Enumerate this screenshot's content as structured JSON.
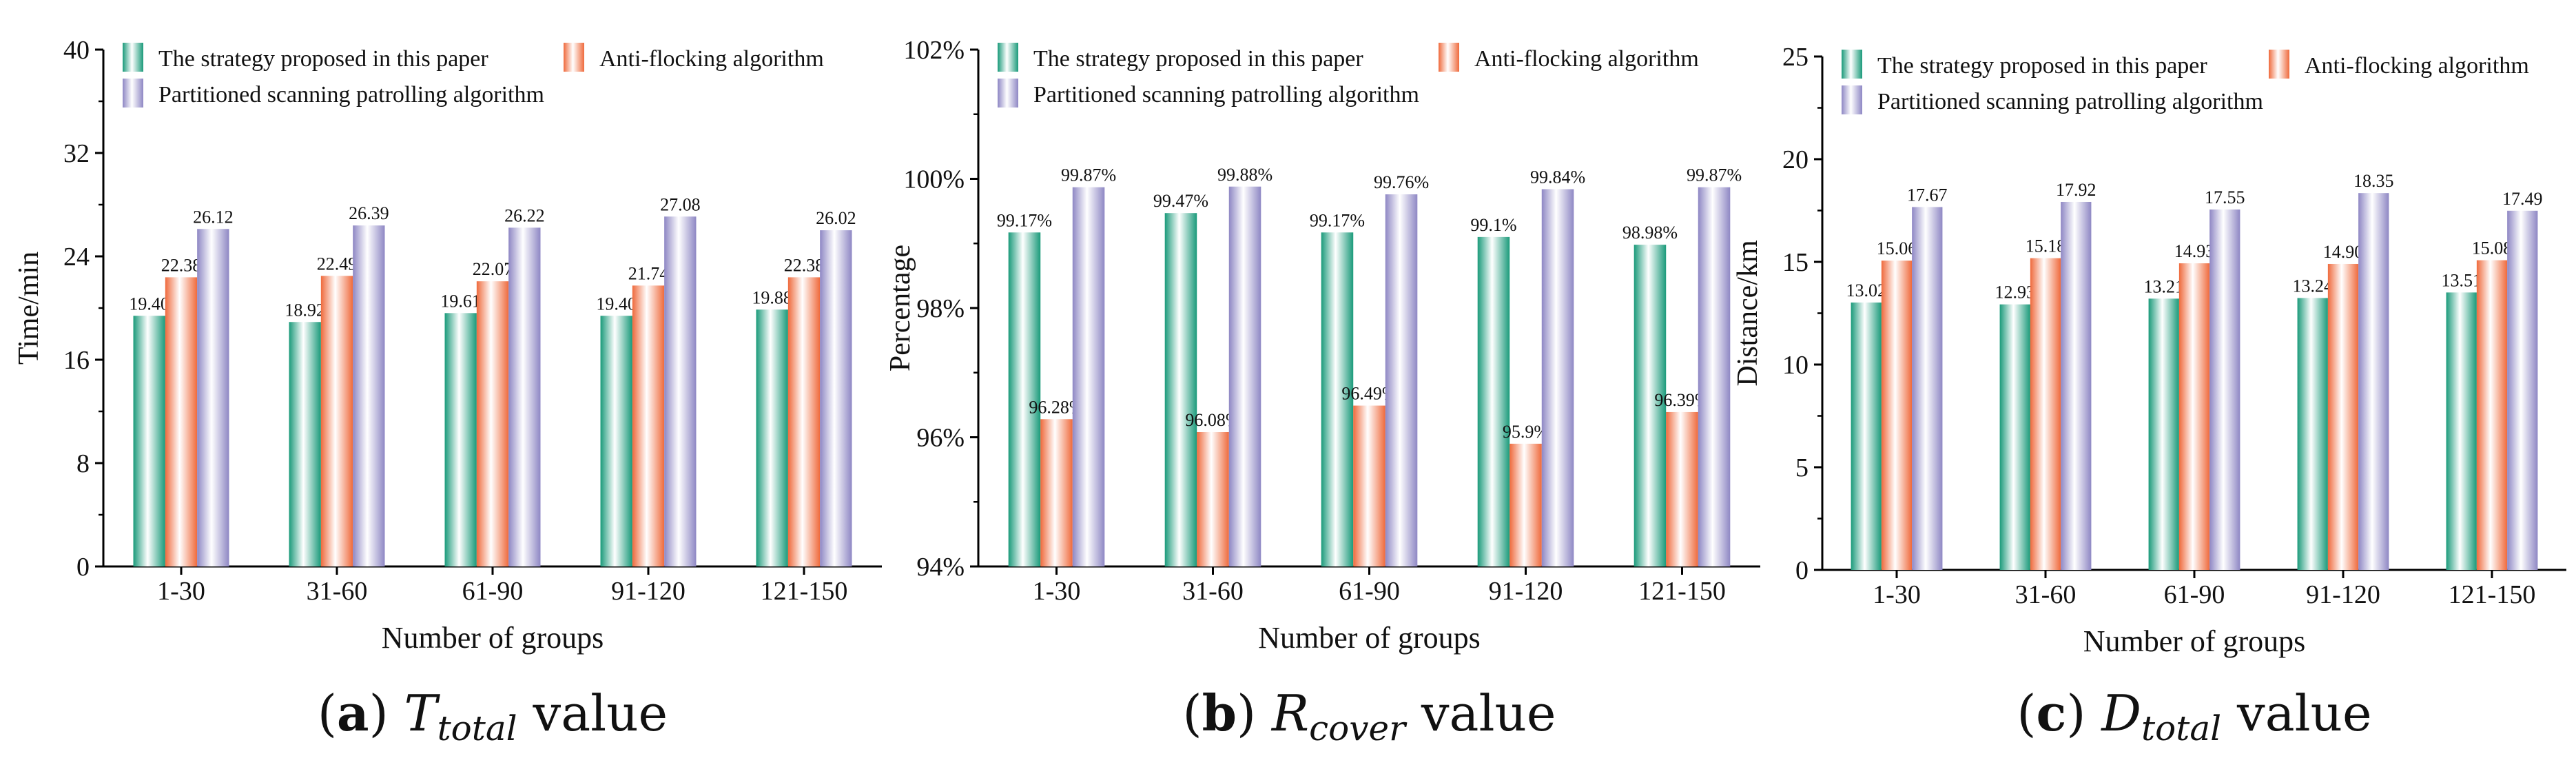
{
  "colors": {
    "series": [
      "#1a9a7a",
      "#ef6a3c",
      "#8e87c4"
    ],
    "label_colors": [
      "#13876b",
      "#e2622d",
      "#7a73b8"
    ]
  },
  "chart_data": [
    {
      "type": "bar",
      "title": "",
      "xlabel": "Number of groups",
      "ylabel": "Time/min",
      "categories": [
        "1-30",
        "31-60",
        "61-90",
        "91-120",
        "121-150"
      ],
      "ylim": [
        0,
        40
      ],
      "yticks": [
        0,
        8,
        16,
        24,
        32,
        40
      ],
      "ytick_labels": [
        "0",
        "8",
        "16",
        "24",
        "32",
        "40"
      ],
      "series": [
        {
          "name": "The strategy proposed in this paper",
          "values": [
            19.4,
            18.92,
            19.61,
            19.4,
            19.88
          ],
          "labels": [
            "19.40",
            "18.92",
            "19.61",
            "19.40",
            "19.88"
          ]
        },
        {
          "name": "Anti-flocking algorithm",
          "values": [
            22.38,
            22.49,
            22.07,
            21.74,
            22.38
          ],
          "labels": [
            "22.38",
            "22.49",
            "22.07",
            "21.74",
            "22.38"
          ]
        },
        {
          "name": "Partitioned scanning patrolling algorithm",
          "values": [
            26.12,
            26.39,
            26.22,
            27.08,
            26.02
          ],
          "labels": [
            "26.12",
            "26.39",
            "26.22",
            "27.08",
            "26.02"
          ]
        }
      ],
      "caption": {
        "letter": "a",
        "symbol": "T",
        "subscript": "total",
        "suffix": "value"
      }
    },
    {
      "type": "bar",
      "title": "",
      "xlabel": "Number of groups",
      "ylabel": "Percentage",
      "categories": [
        "1-30",
        "31-60",
        "61-90",
        "91-120",
        "121-150"
      ],
      "ylim": [
        94,
        102
      ],
      "yticks": [
        94,
        96,
        98,
        100,
        102
      ],
      "ytick_labels": [
        "94%",
        "96%",
        "98%",
        "100%",
        "102%"
      ],
      "series": [
        {
          "name": "The strategy proposed in this paper",
          "values": [
            99.17,
            99.47,
            99.17,
            99.1,
            98.98
          ],
          "labels": [
            "99.17%",
            "99.47%",
            "99.17%",
            "99.1%",
            "98.98%"
          ]
        },
        {
          "name": "Anti-flocking algorithm",
          "values": [
            96.28,
            96.08,
            96.49,
            95.9,
            96.39
          ],
          "labels": [
            "96.28%",
            "96.08%",
            "96.49%",
            "95.9%",
            "96.39%"
          ]
        },
        {
          "name": "Partitioned scanning patrolling algorithm",
          "values": [
            99.87,
            99.88,
            99.76,
            99.84,
            99.87
          ],
          "labels": [
            "99.87%",
            "99.88%",
            "99.76%",
            "99.84%",
            "99.87%"
          ]
        }
      ],
      "caption": {
        "letter": "b",
        "symbol": "R",
        "subscript": "cover",
        "suffix": "value"
      }
    },
    {
      "type": "bar",
      "title": "",
      "xlabel": "Number of groups",
      "ylabel": "Distance/km",
      "categories": [
        "1-30",
        "31-60",
        "61-90",
        "91-120",
        "121-150"
      ],
      "ylim": [
        0,
        25
      ],
      "yticks": [
        0,
        5,
        10,
        15,
        20,
        25
      ],
      "ytick_labels": [
        "0",
        "5",
        "10",
        "15",
        "20",
        "25"
      ],
      "series": [
        {
          "name": "The strategy proposed in this paper",
          "values": [
            13.02,
            12.93,
            13.21,
            13.24,
            13.51
          ],
          "labels": [
            "13.02",
            "12.93",
            "13.21",
            "13.24",
            "13.51"
          ]
        },
        {
          "name": "Anti-flocking algorithm",
          "values": [
            15.06,
            15.18,
            14.93,
            14.9,
            15.08
          ],
          "labels": [
            "15.06",
            "15.18",
            "14.93",
            "14.90",
            "15.08"
          ]
        },
        {
          "name": "Partitioned scanning patrolling algorithm",
          "values": [
            17.67,
            17.92,
            17.55,
            18.35,
            17.49
          ],
          "labels": [
            "17.67",
            "17.92",
            "17.55",
            "18.35",
            "17.49"
          ]
        }
      ],
      "caption": {
        "letter": "c",
        "symbol": "D",
        "subscript": "total",
        "suffix": "value"
      }
    }
  ]
}
